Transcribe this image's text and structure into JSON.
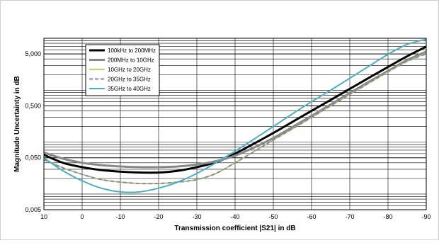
{
  "chart_data": {
    "type": "line",
    "title": "",
    "xlabel": "Transmission  coefficient |S21| in dB",
    "ylabel": "Magnitude Uncertainty  in dB",
    "xlim": [
      10,
      -90
    ],
    "ylim": [
      0.005,
      10
    ],
    "yscale": "log",
    "grid": true,
    "legend_position": "top-left",
    "x_ticks": [
      10,
      0,
      -10,
      -20,
      -30,
      -40,
      -50,
      -60,
      -70,
      -80,
      -90
    ],
    "x_tick_labels": [
      "10",
      "0",
      "-10",
      "-20",
      "-30",
      "-40",
      "-50",
      "-60",
      "-70",
      "-80",
      "-90"
    ],
    "y_ticks": [
      0.005,
      0.05,
      0.5,
      5
    ],
    "y_tick_labels": [
      "0,005",
      "0,050",
      "0,500",
      "5,000"
    ],
    "x": [
      10,
      5,
      0,
      -5,
      -10,
      -15,
      -20,
      -25,
      -30,
      -35,
      -40,
      -45,
      -50,
      -55,
      -60,
      -65,
      -70,
      -75,
      -80,
      -85,
      -90
    ],
    "series": [
      {
        "name": "100kHz to 200MHz",
        "color": "#000000",
        "dash": "solid",
        "values": [
          0.057,
          0.04,
          0.033,
          0.029,
          0.027,
          0.026,
          0.026,
          0.028,
          0.033,
          0.041,
          0.06,
          0.094,
          0.15,
          0.245,
          0.4,
          0.65,
          1.06,
          1.73,
          2.8,
          4.5,
          6.9
        ]
      },
      {
        "name": "200MHz to 10GHz",
        "color": "#888888",
        "dash": "solid",
        "values": [
          0.063,
          0.048,
          0.04,
          0.036,
          0.034,
          0.033,
          0.033,
          0.034,
          0.037,
          0.043,
          0.055,
          0.079,
          0.12,
          0.195,
          0.32,
          0.53,
          0.88,
          1.45,
          2.35,
          3.8,
          5.5
        ]
      },
      {
        "name": "10GHz to 20GHz",
        "color": "#9acd32",
        "dash": "solid",
        "values": [
          0.046,
          0.032,
          0.024,
          0.019,
          0.017,
          0.016,
          0.016,
          0.017,
          0.019,
          0.025,
          0.04,
          0.066,
          0.11,
          0.18,
          0.3,
          0.5,
          0.83,
          1.37,
          2.25,
          3.6,
          5.2
        ]
      },
      {
        "name": "20GHz to 35GHz",
        "color": "#8a7fbf",
        "dash": "dashed",
        "values": [
          0.046,
          0.032,
          0.024,
          0.019,
          0.017,
          0.016,
          0.016,
          0.017,
          0.019,
          0.025,
          0.04,
          0.066,
          0.11,
          0.18,
          0.3,
          0.5,
          0.83,
          1.37,
          2.25,
          3.6,
          5.0
        ]
      },
      {
        "name": "35GHz to 40GHz",
        "color": "#4aaec4",
        "dash": "solid",
        "values": [
          0.05,
          0.028,
          0.018,
          0.013,
          0.011,
          0.011,
          0.013,
          0.017,
          0.025,
          0.04,
          0.067,
          0.115,
          0.2,
          0.35,
          0.6,
          1.0,
          1.7,
          2.9,
          4.9,
          7.6,
          9.6
        ]
      }
    ]
  }
}
